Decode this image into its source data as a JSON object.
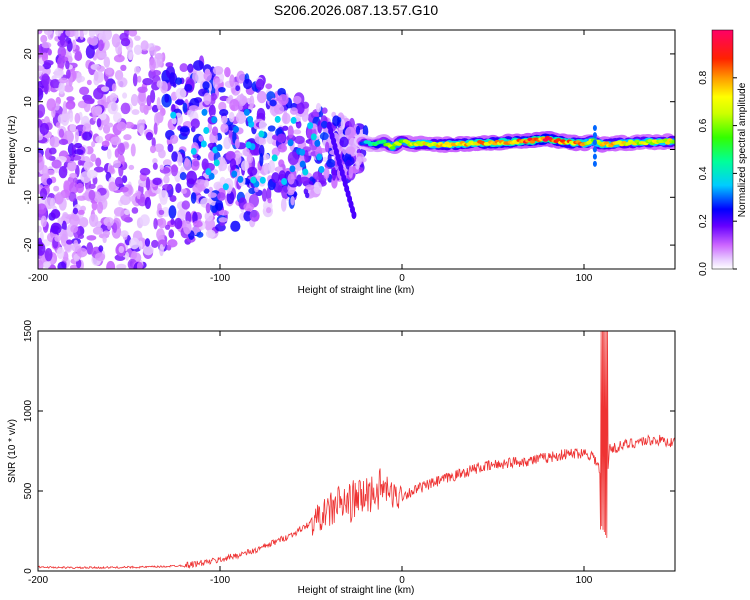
{
  "title": "S206.2026.087.13.57.G10",
  "chart_data": [
    {
      "type": "heatmap",
      "title": "S206.2026.087.13.57.G10",
      "xlabel": "Height of straight line (km)",
      "ylabel": "Frequency (Hz)",
      "xlim": [
        -200,
        150
      ],
      "ylim": [
        -25,
        25
      ],
      "xticks": [
        -200,
        -100,
        0,
        100
      ],
      "yticks": [
        -20,
        -10,
        0,
        10,
        20
      ],
      "colorbar": {
        "label": "Normalized spectral amplitude",
        "range": [
          0,
          1
        ],
        "ticks": [
          "0.0",
          "0.2",
          "0.4",
          "0.6",
          "0.8"
        ],
        "tick_values": [
          0.0,
          0.2,
          0.4,
          0.6,
          0.8
        ],
        "colors": [
          "#ffffff",
          "#cc66ff",
          "#6600ff",
          "#0000ff",
          "#00ccff",
          "#00ff66",
          "#66ff00",
          "#ffff00",
          "#ff6600",
          "#ff0000",
          "#ff0066"
        ]
      },
      "ridge": {
        "x": [
          -22,
          -15,
          -10,
          -5,
          0,
          5,
          10,
          20,
          30,
          40,
          50,
          60,
          70,
          80,
          90,
          100,
          105,
          110,
          120,
          130,
          140,
          150
        ],
        "freq": [
          1.5,
          1.0,
          1.5,
          0.5,
          1.8,
          1.0,
          1.2,
          1.0,
          1.1,
          1.3,
          1.4,
          1.6,
          1.8,
          2.2,
          1.5,
          1.2,
          1.8,
          1.0,
          1.3,
          1.5,
          1.6,
          1.7
        ],
        "amplitude": [
          0.35,
          0.5,
          0.6,
          0.75,
          0.7,
          0.75,
          0.8,
          0.8,
          0.85,
          0.85,
          0.9,
          0.9,
          0.95,
          1.0,
          0.9,
          0.85,
          0.7,
          0.85,
          0.8,
          0.75,
          0.8,
          0.75
        ]
      }
    },
    {
      "type": "line",
      "xlabel": "Height of straight line (km)",
      "ylabel": "SNR (10 * v/v)",
      "xlim": [
        -200,
        150
      ],
      "ylim": [
        0,
        1500
      ],
      "xticks": [
        -200,
        -100,
        0,
        100
      ],
      "yticks": [
        0,
        500,
        1000,
        1500
      ],
      "color": "#ee3333",
      "series": [
        {
          "name": "SNR",
          "x": [
            -200,
            -180,
            -160,
            -140,
            -130,
            -120,
            -110,
            -100,
            -90,
            -80,
            -70,
            -60,
            -50,
            -40,
            -35,
            -30,
            -25,
            -20,
            -15,
            -10,
            -5,
            0,
            10,
            20,
            30,
            40,
            50,
            60,
            70,
            80,
            90,
            100,
            105,
            108,
            110,
            112,
            114,
            120,
            130,
            140,
            150
          ],
          "values": [
            25,
            20,
            22,
            25,
            28,
            35,
            50,
            70,
            100,
            130,
            180,
            230,
            300,
            380,
            420,
            420,
            450,
            470,
            500,
            520,
            470,
            470,
            520,
            560,
            600,
            640,
            660,
            680,
            690,
            710,
            730,
            740,
            720,
            650,
            500,
            520,
            760,
            780,
            810,
            820,
            800
          ],
          "spike": {
            "x": 111,
            "max": 1500,
            "min": 200
          }
        }
      ]
    }
  ]
}
